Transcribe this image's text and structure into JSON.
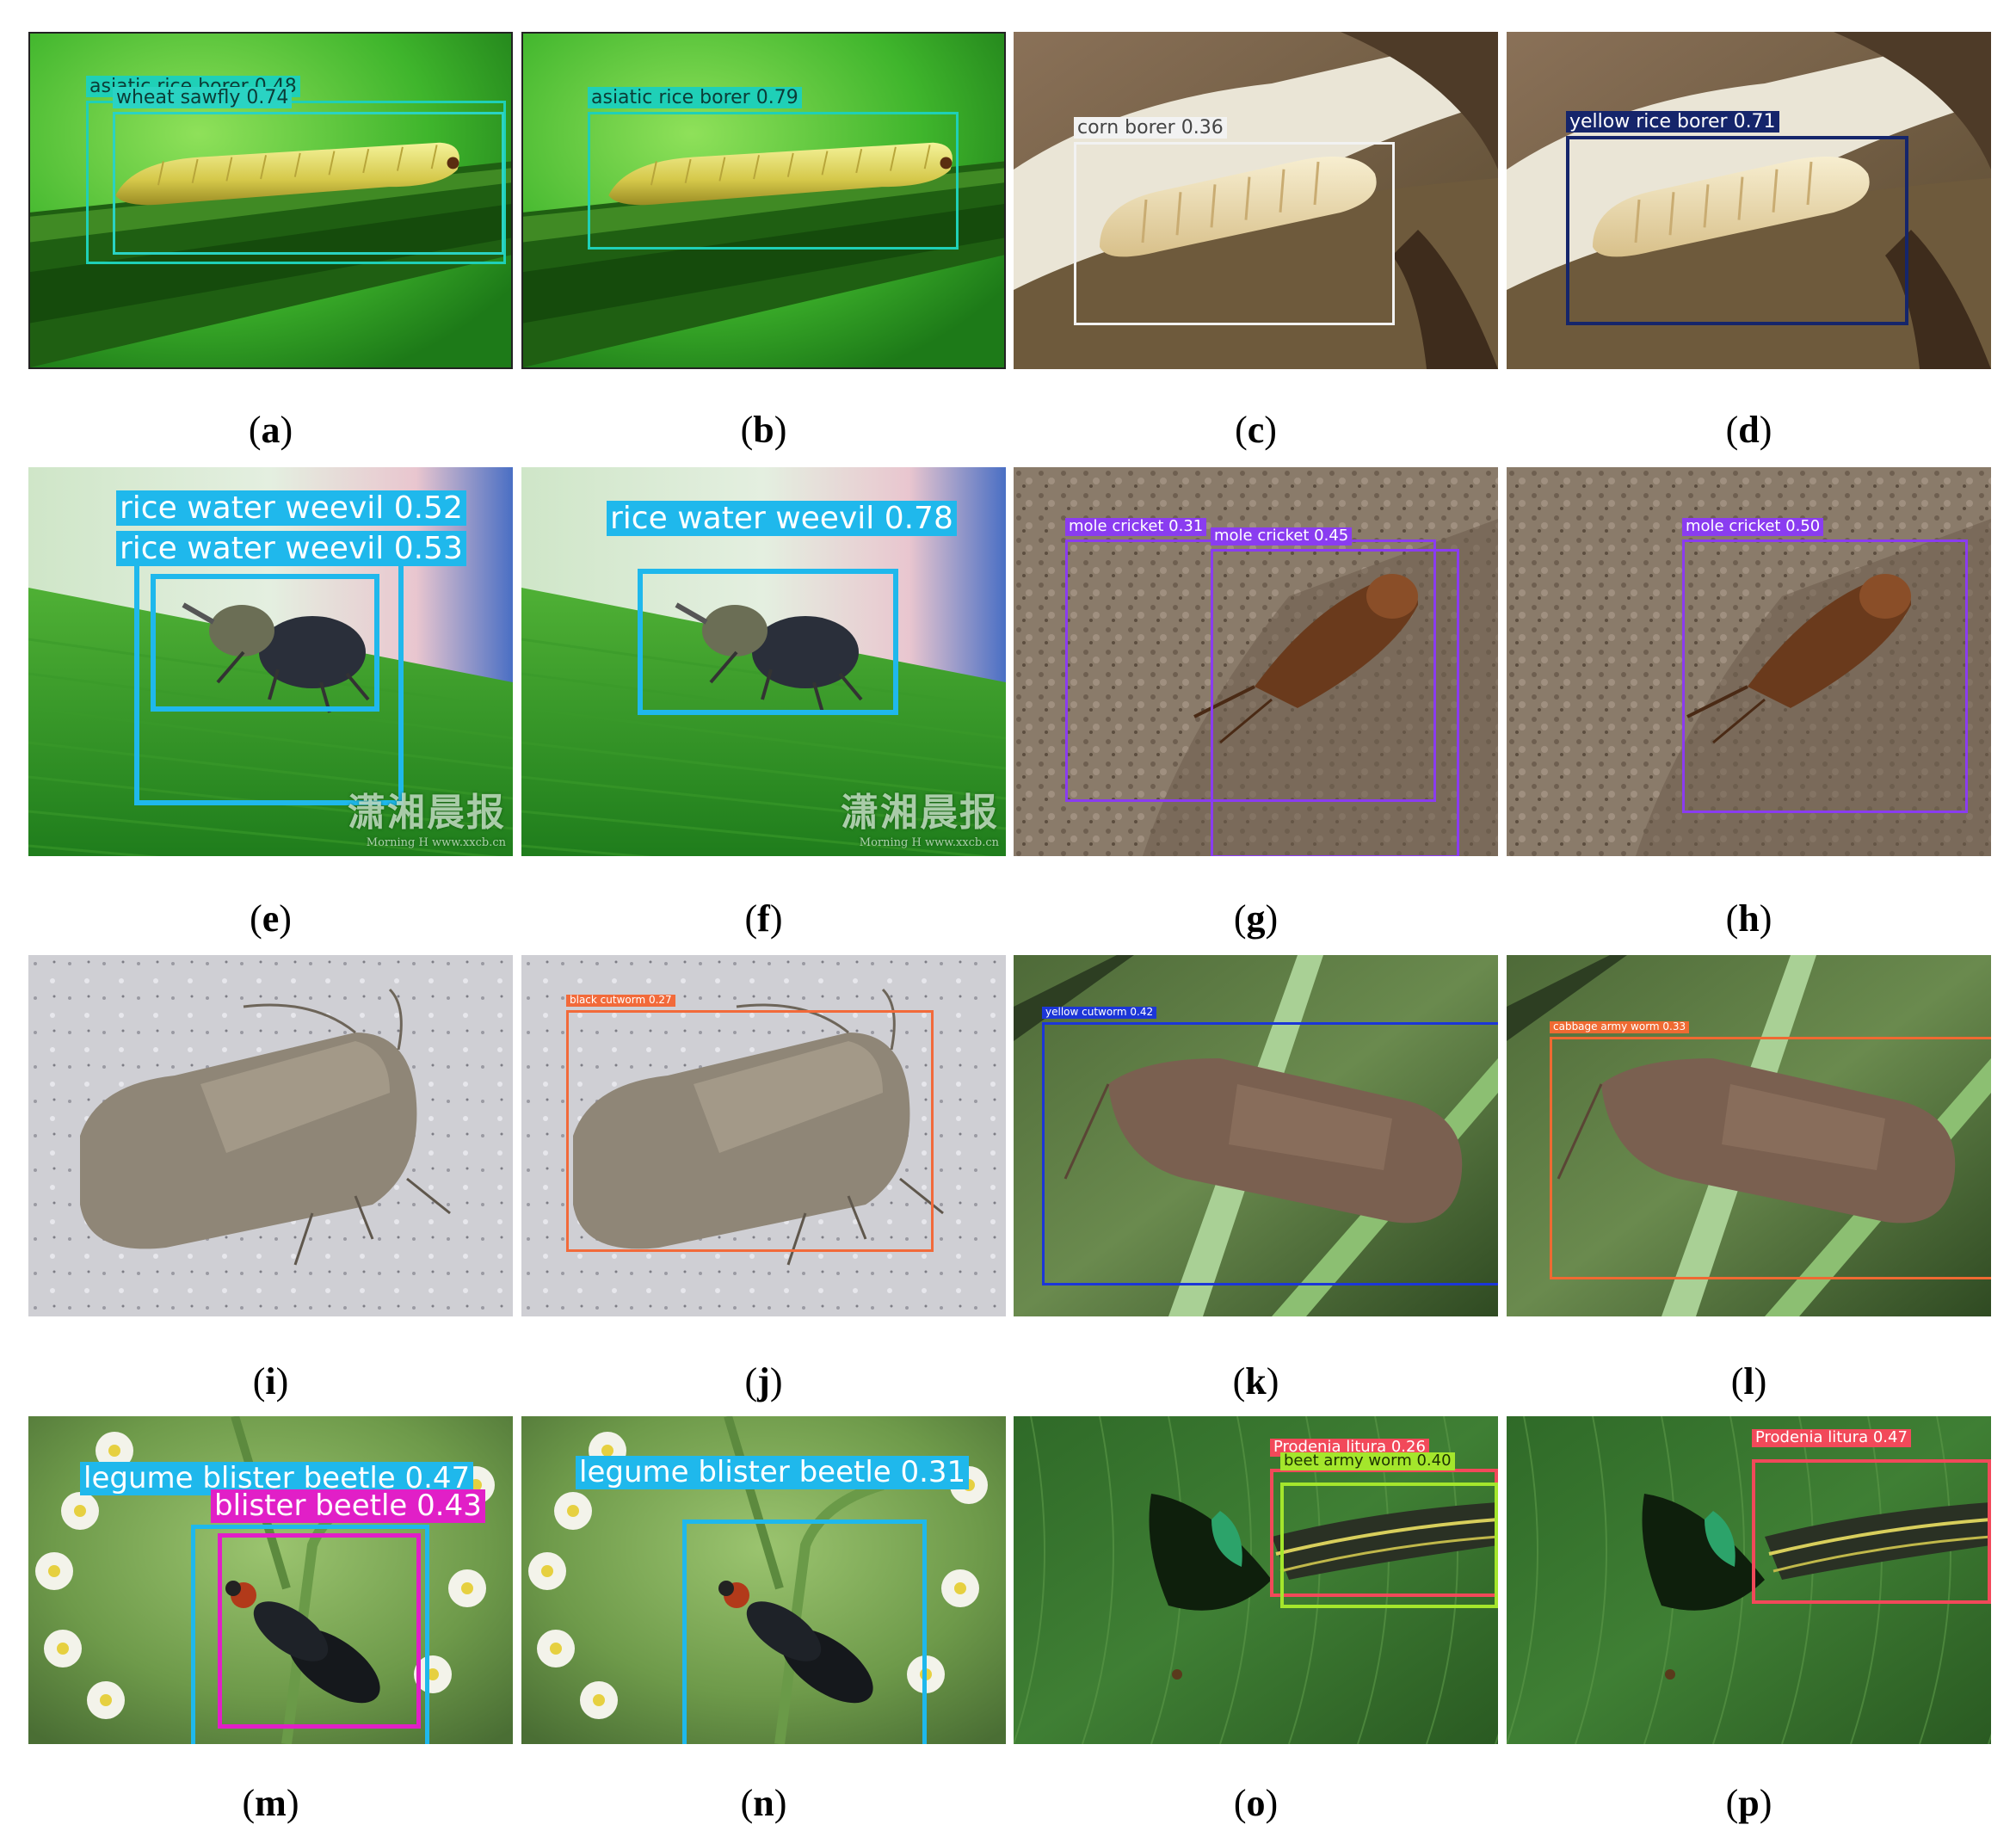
{
  "panels": [
    {
      "id": "a",
      "caption": "a",
      "scene": "larva-green",
      "framed": true,
      "boxes": [
        {
          "label": "asiatic rice borer 0.48",
          "color": "#1fd0b7",
          "textColor": "#0b3c37",
          "fontSize": 22
        },
        {
          "label": "wheat sawfly 0.74",
          "color": "#2ad3c3",
          "textColor": "#0b3c37",
          "fontSize": 22
        }
      ]
    },
    {
      "id": "b",
      "caption": "b",
      "scene": "larva-green",
      "framed": true,
      "boxes": [
        {
          "label": "asiatic rice borer 0.79",
          "color": "#1fd0b7",
          "textColor": "#0b3c37",
          "fontSize": 22
        }
      ]
    },
    {
      "id": "c",
      "caption": "c",
      "scene": "larva-stalk",
      "boxes": [
        {
          "label": "corn borer 0.36",
          "color": "#f2f2f2",
          "textColor": "#444444",
          "fontSize": 22
        }
      ]
    },
    {
      "id": "d",
      "caption": "d",
      "scene": "larva-stalk",
      "boxes": [
        {
          "label": "yellow rice borer 0.71",
          "color": "#15256b",
          "textColor": "#ffffff",
          "fontSize": 22
        }
      ]
    },
    {
      "id": "e",
      "caption": "e",
      "scene": "weevil",
      "watermark": "潇湘晨报",
      "watermark_sub": "Morning H   www.xxcb.cn",
      "boxes": [
        {
          "label": "rice water weevil 0.53",
          "color": "#1fb8ec",
          "textColor": "#ffffff",
          "fontSize": 36
        },
        {
          "label": "rice water weevil 0.52",
          "color": "#1fb8ec",
          "textColor": "#ffffff",
          "fontSize": 36
        }
      ]
    },
    {
      "id": "f",
      "caption": "f",
      "scene": "weevil",
      "watermark": "潇湘晨报",
      "watermark_sub": "Morning H   www.xxcb.cn",
      "boxes": [
        {
          "label": "rice water weevil 0.78",
          "color": "#1fb8ec",
          "textColor": "#ffffff",
          "fontSize": 36
        }
      ]
    },
    {
      "id": "g",
      "caption": "g",
      "scene": "cricket",
      "boxes": [
        {
          "label": "mole cricket 0.31",
          "color": "#8a3cf0",
          "textColor": "#ffffff",
          "fontSize": 18
        },
        {
          "label": "mole cricket 0.45",
          "color": "#8a3cf0",
          "textColor": "#ffffff",
          "fontSize": 18
        }
      ]
    },
    {
      "id": "h",
      "caption": "h",
      "scene": "cricket",
      "boxes": [
        {
          "label": "mole cricket 0.50",
          "color": "#8a3cf0",
          "textColor": "#ffffff",
          "fontSize": 18
        }
      ]
    },
    {
      "id": "i",
      "caption": "i",
      "scene": "moth-grey",
      "boxes": []
    },
    {
      "id": "j",
      "caption": "j",
      "scene": "moth-grey",
      "boxes": [
        {
          "label": "black cutworm 0.27",
          "color": "#f26a3a",
          "textColor": "#ffffff",
          "fontSize": 12
        }
      ]
    },
    {
      "id": "k",
      "caption": "k",
      "scene": "moth-brown",
      "boxes": [
        {
          "label": "yellow cutworm 0.42",
          "color": "#1c36d8",
          "textColor": "#ffffff",
          "fontSize": 12
        }
      ]
    },
    {
      "id": "l",
      "caption": "l",
      "scene": "moth-brown",
      "boxes": [
        {
          "label": "cabbage army worm 0.33",
          "color": "#ef6a32",
          "textColor": "#ffffff",
          "fontSize": 12
        }
      ]
    },
    {
      "id": "m",
      "caption": "m",
      "scene": "beetle",
      "boxes": [
        {
          "label": "legume blister beetle 0.47",
          "color": "#1fb8ec",
          "textColor": "#ffffff",
          "fontSize": 34
        },
        {
          "label": "blister beetle 0.43",
          "color": "#e11fc7",
          "textColor": "#ffffff",
          "fontSize": 34
        }
      ]
    },
    {
      "id": "n",
      "caption": "n",
      "scene": "beetle",
      "boxes": [
        {
          "label": "legume blister beetle 0.31",
          "color": "#1fb8ec",
          "textColor": "#ffffff",
          "fontSize": 34
        }
      ]
    },
    {
      "id": "o",
      "caption": "o",
      "scene": "caterpillar",
      "boxes": [
        {
          "label": "Prodenia litura 0.26",
          "color": "#f2495a",
          "textColor": "#ffffff",
          "fontSize": 18
        },
        {
          "label": "beet army worm 0.40",
          "color": "#a4e62c",
          "textColor": "#1c3300",
          "fontSize": 18
        }
      ]
    },
    {
      "id": "p",
      "caption": "p",
      "scene": "caterpillar",
      "boxes": [
        {
          "label": "Prodenia litura 0.47",
          "color": "#f2495a",
          "textColor": "#ffffff",
          "fontSize": 18
        }
      ]
    }
  ]
}
